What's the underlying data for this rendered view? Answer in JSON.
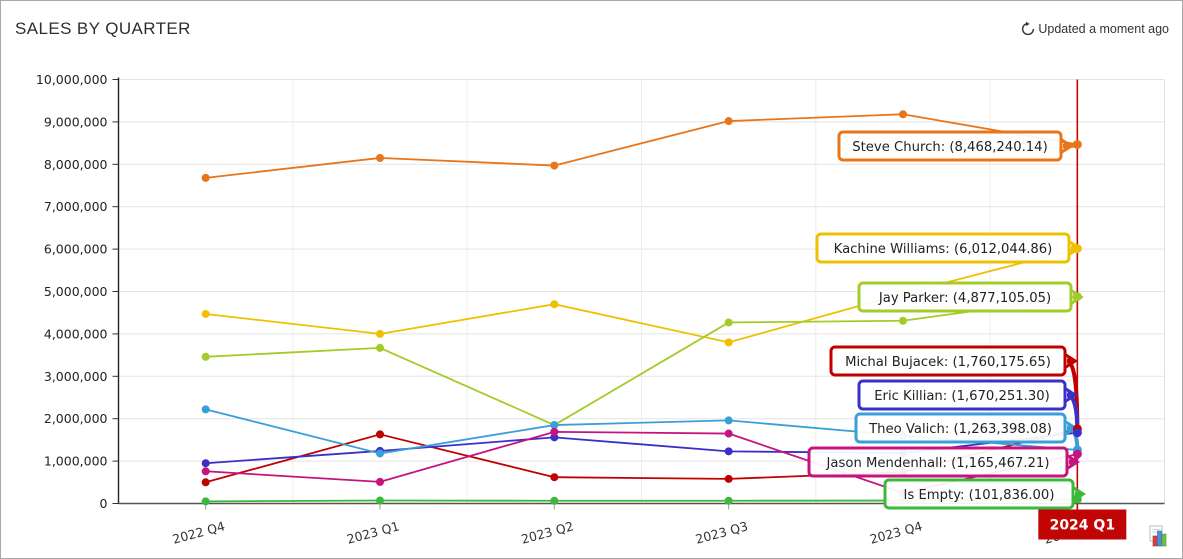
{
  "header": {
    "title": "SALES BY QUARTER",
    "updated": "Updated a moment ago"
  },
  "chart_data": {
    "type": "line",
    "title": "SALES BY QUARTER",
    "categories": [
      "2022 Q4",
      "2023 Q1",
      "2023 Q2",
      "2023 Q3",
      "2023 Q4",
      "2024 Q1"
    ],
    "ylim": [
      0,
      10000000
    ],
    "y_tick_labels": [
      "0",
      "1,000,000",
      "2,000,000",
      "3,000,000",
      "4,000,000",
      "5,000,000",
      "6,000,000",
      "7,000,000",
      "8,000,000",
      "9,000,000",
      "10,000,000"
    ],
    "grid": true,
    "legend_position": "inline-callouts",
    "series": [
      {
        "name": "Steve Church",
        "color": "#e8751a",
        "values": [
          7680000,
          8150000,
          7970000,
          9020000,
          9180000,
          8468240.14
        ],
        "final_label": "Steve Church: (8,468,240.14)"
      },
      {
        "name": "Kachine Williams",
        "color": "#efc000",
        "values": [
          4470000,
          4000000,
          4700000,
          3800000,
          4950000,
          6012044.86
        ],
        "final_label": "Kachine Williams: (6,012,044.86)"
      },
      {
        "name": "Jay Parker",
        "color": "#a3cc2a",
        "values": [
          3460000,
          3670000,
          1850000,
          4270000,
          4310000,
          4877105.05
        ],
        "final_label": "Jay Parker: (4,877,105.05)"
      },
      {
        "name": "Michal Bujacek",
        "color": "#c10000",
        "values": [
          500000,
          1630000,
          620000,
          580000,
          740000,
          1760175.65
        ],
        "final_label": "Michal Bujacek: (1,760,175.65)"
      },
      {
        "name": "Eric Killian",
        "color": "#3a30c8",
        "values": [
          950000,
          1240000,
          1560000,
          1230000,
          1190000,
          1670251.3
        ],
        "final_label": "Eric Killian: (1,670,251.30)"
      },
      {
        "name": "Theo Valich",
        "color": "#3a9fd8",
        "values": [
          2220000,
          1180000,
          1850000,
          1960000,
          1600000,
          1263398.08
        ],
        "final_label": "Theo Valich: (1,263,398.08)"
      },
      {
        "name": "Jason Mendenhall",
        "color": "#c4147e",
        "values": [
          760000,
          510000,
          1690000,
          1650000,
          250000,
          1165467.21
        ],
        "final_label": "Jason Mendenhall: (1,165,467.21)"
      },
      {
        "name": "Is Empty",
        "color": "#3cb83c",
        "values": [
          50000,
          70000,
          65000,
          65000,
          70000,
          101836.0
        ],
        "final_label": "Is Empty: (101,836.00)"
      }
    ],
    "threshold": {
      "category": "2024 Q1",
      "label": "2024 Q1",
      "color": "#c10505"
    }
  }
}
